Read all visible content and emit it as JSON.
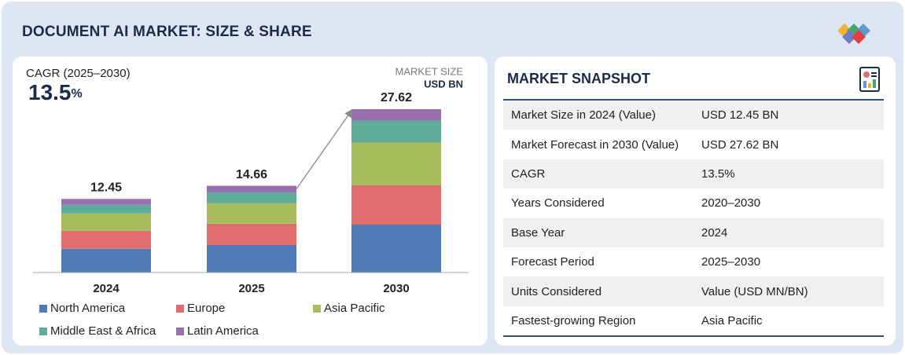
{
  "chart_data": {
    "type": "bar",
    "stacked": true,
    "title": "DOCUMENT AI MARKET: SIZE & SHARE",
    "cagr_label": "CAGR (2025–2030)",
    "cagr_value": "13.5",
    "cagr_unit": "%",
    "unit_label": "MARKET SIZE",
    "unit": "USD BN",
    "categories": [
      "2024",
      "2025",
      "2030"
    ],
    "totals": [
      12.45,
      14.66,
      27.62
    ],
    "series": [
      {
        "name": "North America",
        "color": "#4f7bb8",
        "values": [
          4.0,
          4.65,
          8.1
        ]
      },
      {
        "name": "Europe",
        "color": "#e06e6e",
        "values": [
          3.05,
          3.6,
          6.65
        ]
      },
      {
        "name": "Asia Pacific",
        "color": "#a8bc5e",
        "values": [
          2.95,
          3.45,
          7.2
        ]
      },
      {
        "name": "Middle East & Africa",
        "color": "#5fad98",
        "values": [
          1.45,
          1.85,
          3.75
        ]
      },
      {
        "name": "Latin America",
        "color": "#9a6fb0",
        "values": [
          1.0,
          1.11,
          1.92
        ]
      }
    ]
  },
  "snapshot": {
    "title": "MARKET SNAPSHOT",
    "rows": [
      [
        "Market Size in 2024 (Value)",
        "USD 12.45 BN"
      ],
      [
        "Market Forecast in 2030 (Value)",
        "USD 27.62 BN"
      ],
      [
        "CAGR",
        "13.5%"
      ],
      [
        "Years Considered",
        "2020–2030"
      ],
      [
        "Base Year",
        "2024"
      ],
      [
        "Forecast Period",
        "2025–2030"
      ],
      [
        "Units Considered",
        "Value (USD MN/BN)"
      ],
      [
        "Fastest-growing Region",
        "Asia Pacific"
      ]
    ]
  }
}
